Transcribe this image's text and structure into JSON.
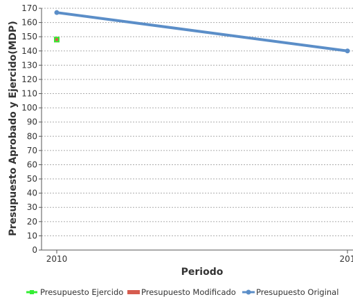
{
  "chart_data": {
    "type": "line",
    "xlabel": "Periodo",
    "ylabel": "Presupuesto Aprobado y Ejercido(MDP)",
    "x_ticks": [
      "2010",
      "201"
    ],
    "ylim": [
      0,
      170
    ],
    "y_step": 10,
    "grid": true,
    "legend_position": "bottom",
    "series": [
      {
        "name": "Presupuesto Ejercido",
        "color": "#33ee33",
        "values": [
          148,
          null
        ]
      },
      {
        "name": "Presupuesto Modificado",
        "color": "#d65c4f",
        "values": [
          148,
          null
        ]
      },
      {
        "name": "Presupuesto Original",
        "color": "#5b8ec8",
        "values": [
          167,
          140
        ]
      }
    ]
  }
}
